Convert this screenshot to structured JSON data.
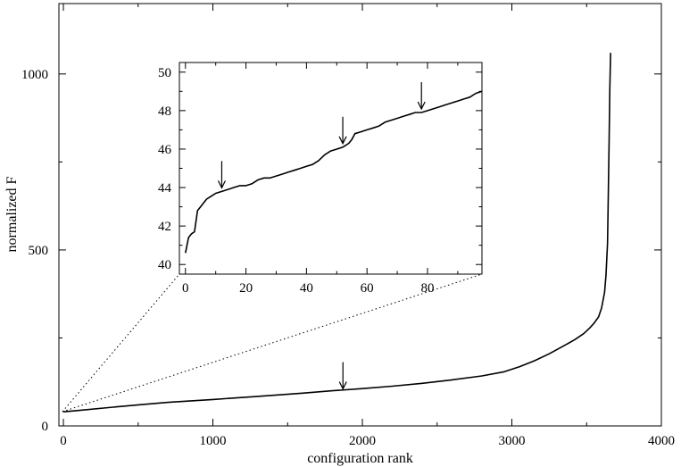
{
  "chart_data": [
    {
      "type": "line",
      "title": "",
      "xlabel": "configuration rank",
      "ylabel": "normalized F",
      "xlim": [
        -30,
        4000
      ],
      "ylim": [
        0,
        1200
      ],
      "xticks": [
        0,
        1000,
        2000,
        3000,
        4000
      ],
      "xtick_labels": [
        "0",
        "1000",
        "2000",
        "3000",
        "4000"
      ],
      "yticks": [
        0,
        500,
        1000
      ],
      "ytick_labels": [
        "0",
        "500",
        "1000"
      ],
      "grid": false,
      "series": [
        {
          "x": [
            0,
            100,
            300,
            500,
            700,
            1000,
            1300,
            1600,
            1800,
            2000,
            2200,
            2400,
            2600,
            2800,
            2950,
            3050,
            3150,
            3250,
            3350,
            3420,
            3480,
            3520,
            3550,
            3580,
            3600,
            3620,
            3630,
            3640,
            3645,
            3650,
            3655,
            3660
          ],
          "y": [
            40,
            44,
            52,
            60,
            67,
            75,
            84,
            93,
            100,
            106,
            113,
            121,
            131,
            142,
            154,
            168,
            185,
            205,
            228,
            245,
            262,
            278,
            292,
            310,
            335,
            380,
            430,
            520,
            650,
            800,
            950,
            1060
          ]
        }
      ],
      "annotations": [
        {
          "type": "arrow",
          "x": 1870,
          "y": 95
        }
      ]
    },
    {
      "type": "line",
      "title": "",
      "xlabel": "",
      "ylabel": "",
      "xlim": [
        -2,
        98
      ],
      "ylim": [
        39.5,
        50.5
      ],
      "xticks": [
        0,
        20,
        40,
        60,
        80
      ],
      "xtick_labels": [
        "0",
        "20",
        "40",
        "60",
        "80"
      ],
      "yticks": [
        40,
        42,
        44,
        46,
        48,
        50
      ],
      "ytick_labels": [
        "40",
        "42",
        "44",
        "46",
        "48",
        "50"
      ],
      "grid": false,
      "series": [
        {
          "x": [
            0,
            1,
            2,
            3,
            4,
            5,
            6,
            7,
            8,
            9,
            10,
            12,
            14,
            16,
            18,
            20,
            22,
            24,
            26,
            28,
            30,
            32,
            34,
            36,
            38,
            40,
            42,
            44,
            46,
            48,
            50,
            52,
            54,
            55,
            56,
            58,
            60,
            62,
            64,
            66,
            68,
            70,
            72,
            74,
            76,
            78,
            80,
            82,
            84,
            86,
            88,
            90,
            92,
            94,
            96,
            98
          ],
          "y": [
            40.6,
            41.4,
            41.6,
            41.7,
            42.8,
            43.0,
            43.2,
            43.4,
            43.5,
            43.6,
            43.7,
            43.8,
            43.9,
            44.0,
            44.1,
            44.1,
            44.2,
            44.4,
            44.5,
            44.5,
            44.6,
            44.7,
            44.8,
            44.9,
            45.0,
            45.1,
            45.2,
            45.4,
            45.7,
            45.9,
            46.0,
            46.1,
            46.3,
            46.5,
            46.8,
            46.9,
            47.0,
            47.1,
            47.2,
            47.4,
            47.5,
            47.6,
            47.7,
            47.8,
            47.9,
            47.9,
            48.0,
            48.1,
            48.2,
            48.3,
            48.4,
            48.5,
            48.6,
            48.7,
            48.9,
            49.0
          ]
        }
      ],
      "annotations": [
        {
          "type": "arrow",
          "x": 12,
          "y": 43.8
        },
        {
          "type": "arrow",
          "x": 52,
          "y": 46.1
        },
        {
          "type": "arrow",
          "x": 78,
          "y": 47.9
        }
      ]
    }
  ]
}
